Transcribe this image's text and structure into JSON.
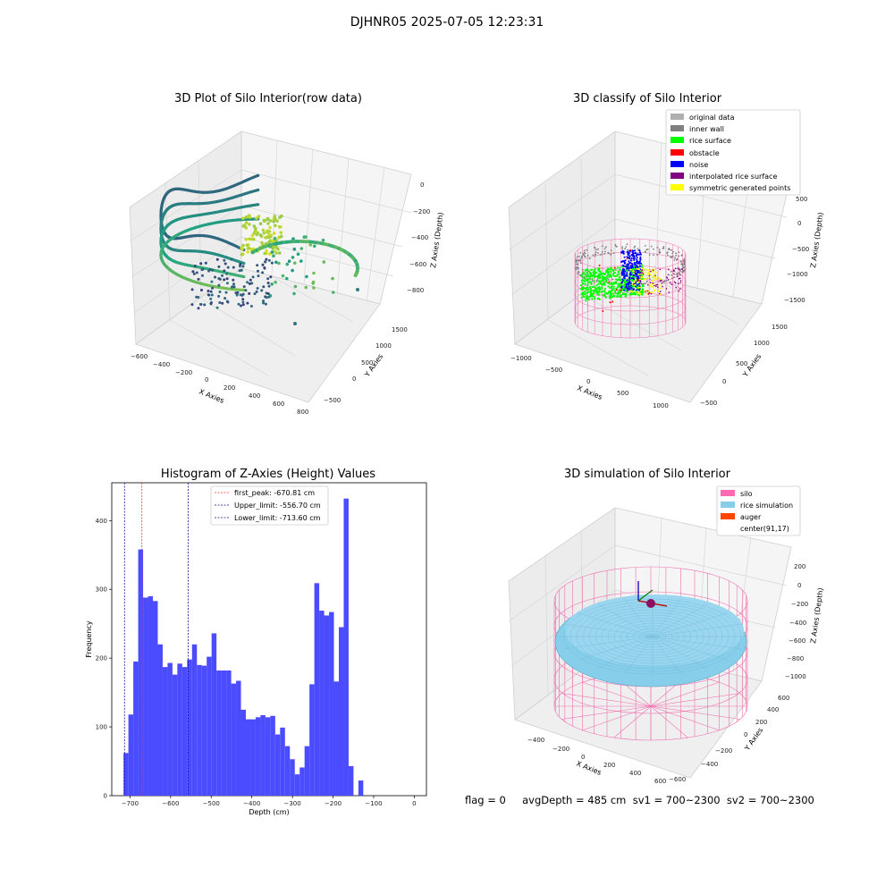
{
  "suptitle": "DJHNR05 2025-07-05 12:23:31",
  "footer": "flag = 0     avgDepth = 485 cm  sv1 = 700~2300  sv2 = 700~2300",
  "colors": {
    "hist_bar": "#4b4bff",
    "first_peak_line": "#ff3030",
    "limit_line": "#1010a0",
    "viridis_low": "#3b2b78",
    "viridis_mid": "#22a384",
    "viridis_high": "#dce21f",
    "silo_wire": "#f070b0",
    "rice_sim": "#87ceeb"
  },
  "chart_data": [
    {
      "type": "scatter",
      "projection": "3d",
      "title": "3D Plot of Silo Interior(row data)",
      "xlabel": "X Axies",
      "ylabel": "Y Axies",
      "zlabel": "Z Axies (Depth)",
      "xticks": [
        "−600",
        "−400",
        "−200",
        "0",
        "200",
        "400",
        "600",
        "800"
      ],
      "yticks": [
        "−500",
        "0",
        "500",
        "1000",
        "1500"
      ],
      "zticks": [
        "0",
        "−200",
        "−400",
        "−600",
        "−800"
      ],
      "xlim": [
        -650,
        850
      ],
      "ylim": [
        -600,
        1700
      ],
      "zlim": [
        -900,
        50
      ],
      "colormap": "viridis"
    },
    {
      "type": "scatter",
      "projection": "3d",
      "title": "3D classify of Silo Interior",
      "xlabel": "X Axies",
      "ylabel": "Y Axies",
      "zlabel": "Z Axies (Depth)",
      "xticks": [
        "−1000",
        "−500",
        "0",
        "500",
        "1000"
      ],
      "yticks": [
        "−500",
        "0",
        "500",
        "1000",
        "1500"
      ],
      "zticks": [
        "500",
        "0",
        "−500",
        "−1000",
        "−1500"
      ],
      "legend_position": "top-right",
      "legend": [
        {
          "label": "original data",
          "color": "#b0b0b0"
        },
        {
          "label": "inner wall",
          "color": "#808080"
        },
        {
          "label": "rice surface",
          "color": "#00ff00"
        },
        {
          "label": "obstacle",
          "color": "#ff0000"
        },
        {
          "label": "noise",
          "color": "#0000ff"
        },
        {
          "label": "interpolated rice surface",
          "color": "#800080"
        },
        {
          "label": "symmetric generated points",
          "color": "#ffff00"
        }
      ]
    },
    {
      "type": "bar",
      "title": "Histogram of Z-Axies (Height) Values",
      "xlabel": "Depth (cm)",
      "ylabel": "Frequency",
      "xlim": [
        -745,
        30
      ],
      "ylim": [
        0,
        455
      ],
      "xticks": [
        -700,
        -600,
        -500,
        -400,
        -300,
        -200,
        -100,
        0
      ],
      "xtick_labels": [
        "−700",
        "−600",
        "−500",
        "−400",
        "−300",
        "−200",
        "−100",
        "0"
      ],
      "yticks": [
        0,
        100,
        200,
        300,
        400
      ],
      "yticks_labels": [
        "0",
        "100",
        "200",
        "300",
        "400"
      ],
      "bin_start": -716,
      "bin_width": 12.05,
      "values": [
        62,
        118,
        195,
        358,
        288,
        290,
        283,
        220,
        187,
        193,
        176,
        192,
        187,
        198,
        220,
        190,
        189,
        202,
        236,
        182,
        182,
        182,
        163,
        167,
        125,
        111,
        111,
        114,
        117,
        114,
        116,
        89,
        99,
        72,
        53,
        31,
        41,
        72,
        162,
        309,
        269,
        262,
        267,
        166,
        245,
        432,
        43,
        0,
        22
      ],
      "legend_position": "top-center",
      "vlines": [
        {
          "x": -670.81,
          "label": "first_peak: -670.81 cm",
          "color": "#ff3030"
        },
        {
          "x": -556.7,
          "label": "Upper_limit: -556.70 cm",
          "color": "#1010a0"
        },
        {
          "x": -713.6,
          "label": "Lower_limit: -713.60 cm",
          "color": "#1010a0"
        }
      ]
    },
    {
      "type": "surface",
      "projection": "3d",
      "title": "3D simulation of Silo Interior",
      "xlabel": "X Axies",
      "ylabel": "Y Axies",
      "zlabel": "Z Axies (Depth)",
      "xticks": [
        "−400",
        "−200",
        "0",
        "200",
        "400",
        "600"
      ],
      "yticks": [
        "−600",
        "−400",
        "−200",
        "0",
        "200",
        "400",
        "600"
      ],
      "zticks": [
        "200",
        "0",
        "−200",
        "−400",
        "−600",
        "−800",
        "−1000"
      ],
      "legend_position": "top-right",
      "legend": [
        {
          "label": "silo",
          "color": "#ff69b4"
        },
        {
          "label": "rice simulation",
          "color": "#87ceeb"
        },
        {
          "label": "auger",
          "color": "#ff4500"
        },
        {
          "label": "center(91,17)",
          "color": "#ffffff"
        }
      ]
    }
  ]
}
